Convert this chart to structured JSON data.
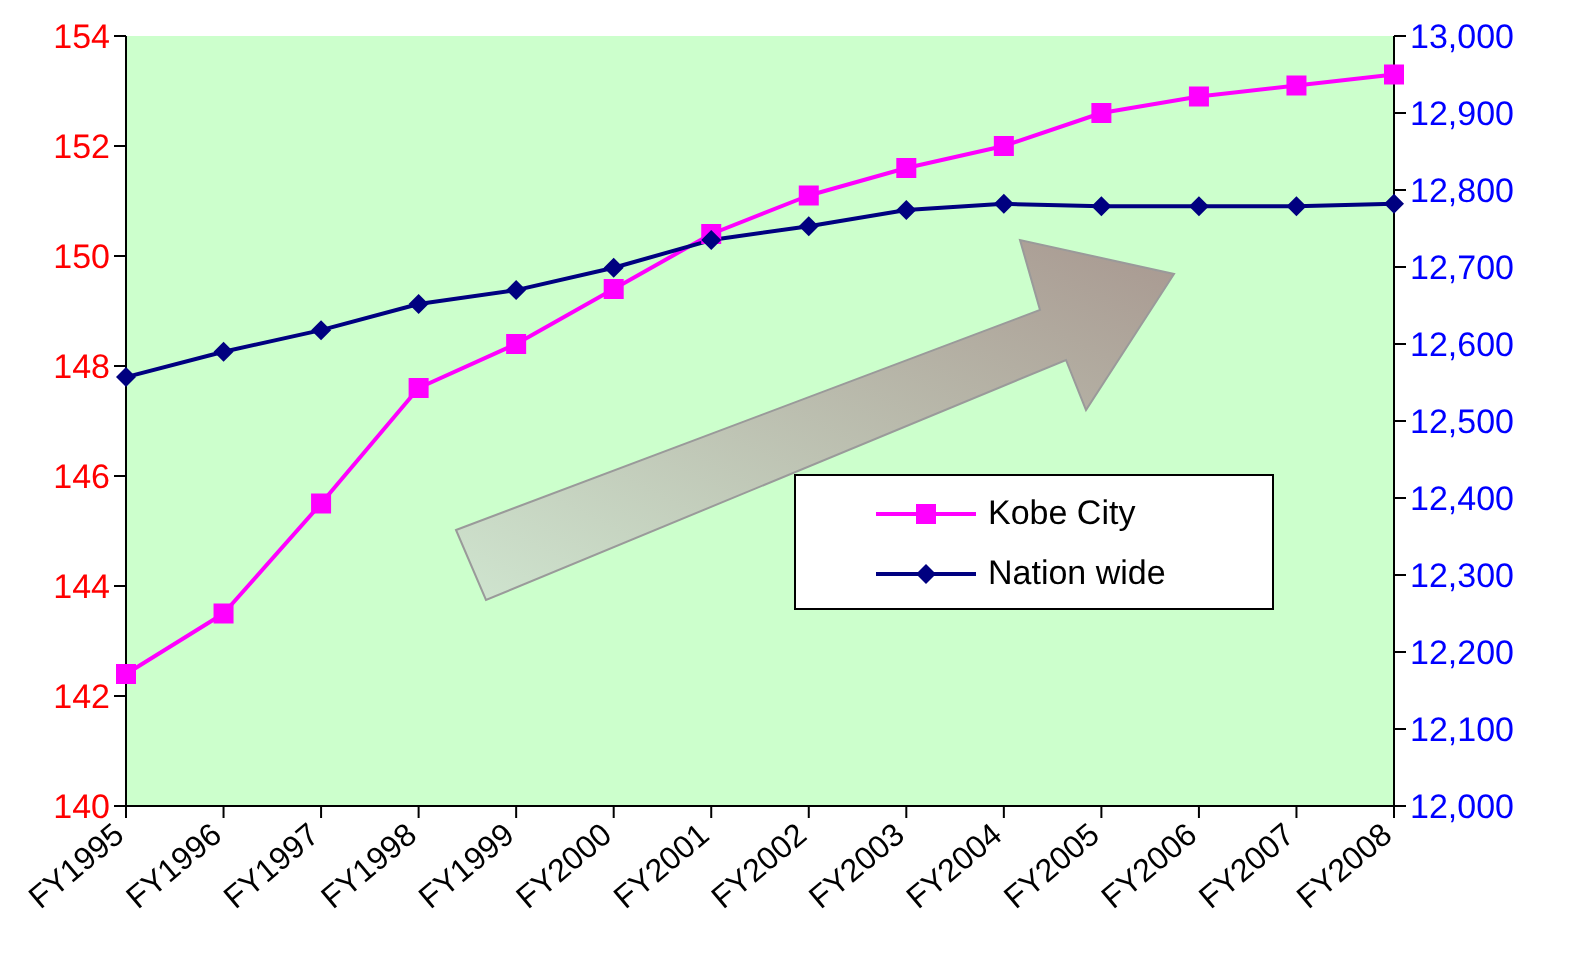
{
  "chart_data": {
    "type": "line",
    "categories": [
      "FY1995",
      "FY1996",
      "FY1997",
      "FY1998",
      "FY1999",
      "FY2000",
      "FY2001",
      "FY2002",
      "FY2003",
      "FY2004",
      "FY2005",
      "FY2006",
      "FY2007",
      "FY2008"
    ],
    "series": [
      {
        "name": "Kobe City",
        "color": "#ff00ff",
        "marker": "square",
        "values": [
          142.4,
          143.5,
          145.5,
          147.6,
          148.4,
          149.4,
          150.4,
          151.1,
          151.6,
          152.0,
          152.6,
          152.9,
          153.1,
          153.3
        ]
      },
      {
        "name": "Nation wide",
        "color": "#000080",
        "marker": "diamond",
        "axis": "y2",
        "values": [
          12557,
          12590,
          12618,
          12652,
          12670,
          12699,
          12735,
          12753,
          12774,
          12782,
          12779,
          12779,
          12779,
          12782
        ]
      }
    ],
    "ylim": [
      140,
      154
    ],
    "yticks": [
      140,
      142,
      144,
      146,
      148,
      150,
      152,
      154
    ],
    "y2lim": [
      12000,
      13000
    ],
    "y2ticks": [
      {
        "value": 12000,
        "label": "12,000"
      },
      {
        "value": 12100,
        "label": "12,100"
      },
      {
        "value": 12200,
        "label": "12,200"
      },
      {
        "value": 12300,
        "label": "12,300"
      },
      {
        "value": 12400,
        "label": "12,400"
      },
      {
        "value": 12500,
        "label": "12,500"
      },
      {
        "value": 12600,
        "label": "12,600"
      },
      {
        "value": 12700,
        "label": "12,700"
      },
      {
        "value": 12800,
        "label": "12,800"
      },
      {
        "value": 12900,
        "label": "12,900"
      },
      {
        "value": 13000,
        "label": "13,000"
      }
    ],
    "grid": false,
    "legend": "right",
    "line_style": "solid"
  }
}
